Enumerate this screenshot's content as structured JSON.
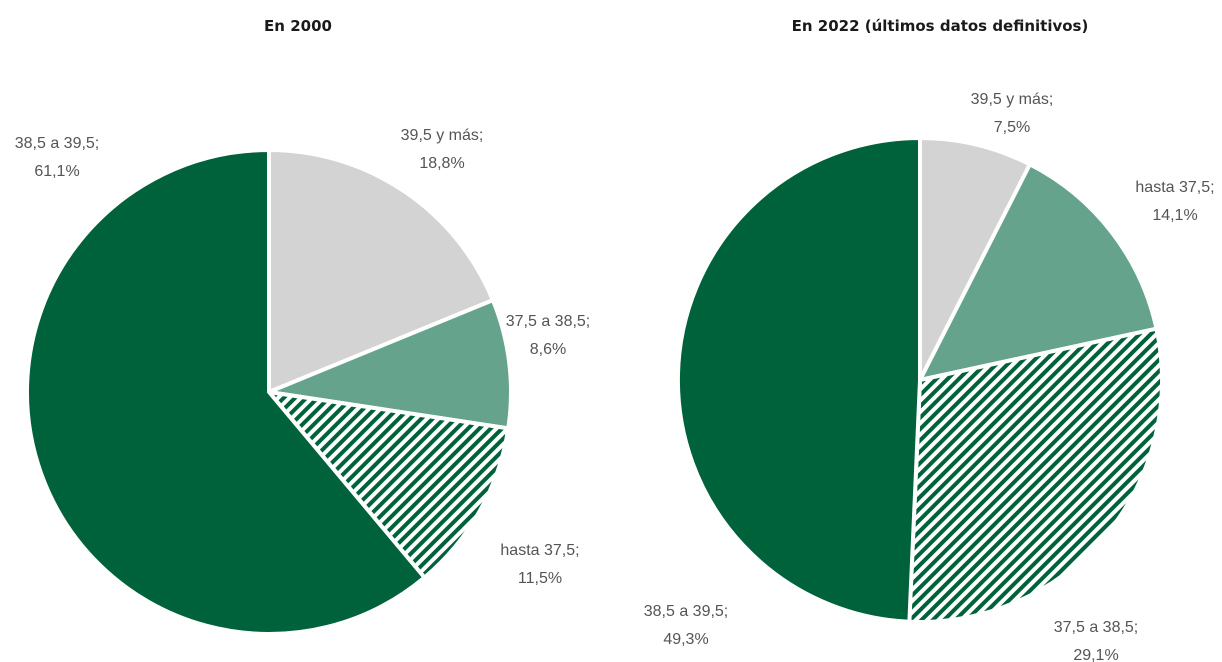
{
  "chart_data": [
    {
      "type": "pie",
      "title": "En 2000",
      "slices": [
        {
          "label": "39,5 y más;",
          "value_text": "18,8%",
          "value": 18.8,
          "fill": "#d3d3d3",
          "hatched": false
        },
        {
          "label": "37,5 a 38,5;",
          "value_text": "8,6%",
          "value": 8.6,
          "fill": "#66a38c",
          "hatched": false
        },
        {
          "label": "hasta 37,5;",
          "value_text": "11,5%",
          "value": 11.5,
          "fill": "#00623b",
          "hatched": true
        },
        {
          "label": "38,5 a 39,5;",
          "value_text": "61,1%",
          "value": 61.1,
          "fill": "#00623b",
          "hatched": false
        }
      ]
    },
    {
      "type": "pie",
      "title": "En 2022 (últimos datos definitivos)",
      "slices": [
        {
          "label": "39,5 y más;",
          "value_text": "7,5%",
          "value": 7.5,
          "fill": "#d3d3d3",
          "hatched": false
        },
        {
          "label": "hasta 37,5;",
          "value_text": "14,1%",
          "value": 14.1,
          "fill": "#66a38c",
          "hatched": false
        },
        {
          "label": "37,5 a 38,5;",
          "value_text": "29,1%",
          "value": 29.1,
          "fill": "#00623b",
          "hatched": true
        },
        {
          "label": "38,5 a 39,5;",
          "value_text": "49,3%",
          "value": 49.3,
          "fill": "#00623b",
          "hatched": false
        }
      ]
    }
  ]
}
